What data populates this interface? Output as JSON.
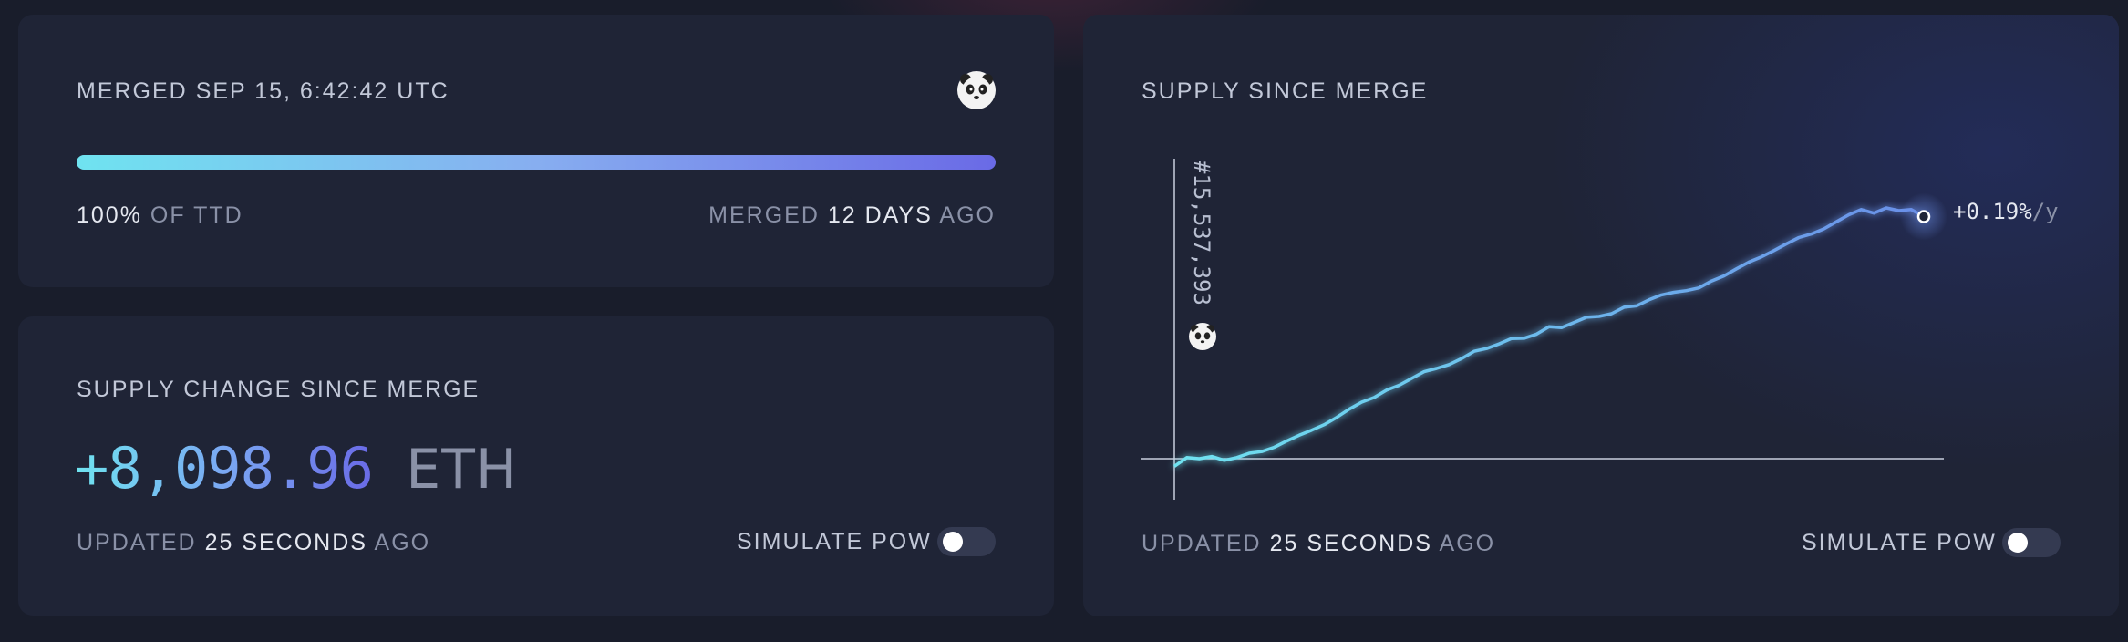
{
  "merge_card": {
    "title_prefix": "MERGED",
    "title_date": "SEP 15, 6:42:42 UTC",
    "progress_value": "100%",
    "progress_label": "OF TTD",
    "progress_fraction": 1.0,
    "merged_prefix": "MERGED",
    "merged_value": "12 DAYS",
    "merged_suffix": "AGO",
    "icon": "panda-icon"
  },
  "supply_card": {
    "title": "SUPPLY CHANGE SINCE MERGE",
    "amount": "+8,098.96",
    "unit": "ETH",
    "updated_prefix": "UPDATED",
    "updated_value": "25 SECONDS",
    "updated_suffix": "AGO",
    "simulate_label": "SIMULATE PoW",
    "simulate_on": false
  },
  "chart_card": {
    "title": "SUPPLY SINCE MERGE",
    "merge_block": "#15,537,393",
    "rate_value": "+0.19%",
    "rate_unit": "/y",
    "updated_prefix": "UPDATED",
    "updated_value": "25 SECONDS",
    "updated_suffix": "AGO",
    "simulate_label": "SIMULATE PoW",
    "simulate_on": false,
    "colors": {
      "line_start": "#6fe3f0",
      "line_end": "#6b8fe8",
      "axis": "#c9cede"
    }
  },
  "chart_data": {
    "type": "line",
    "title": "SUPPLY SINCE MERGE",
    "xlabel": "",
    "ylabel": "",
    "grid": false,
    "x": [
      0,
      1,
      2,
      3,
      4,
      5,
      6,
      7,
      8,
      9,
      10,
      11,
      12,
      13,
      14,
      15,
      16,
      17,
      18,
      19,
      20,
      21,
      22,
      23,
      24,
      25,
      26,
      27,
      28,
      29,
      30,
      31,
      32,
      33,
      34,
      35,
      36,
      37,
      38,
      39,
      40,
      41,
      42,
      43,
      44,
      45,
      46,
      47,
      48,
      49,
      50,
      51,
      52,
      53,
      54,
      55,
      56,
      57,
      58,
      59,
      60
    ],
    "series": [
      {
        "values": [
          -280,
          40,
          0,
          80,
          -60,
          40,
          200,
          260,
          420,
          650,
          860,
          1050,
          1250,
          1520,
          1820,
          2080,
          2250,
          2520,
          2700,
          2950,
          3200,
          3320,
          3460,
          3680,
          3950,
          4050,
          4220,
          4420,
          4430,
          4580,
          4850,
          4820,
          5010,
          5200,
          5230,
          5330,
          5570,
          5620,
          5840,
          6020,
          6120,
          6180,
          6280,
          6530,
          6720,
          6980,
          7230,
          7420,
          7650,
          7900,
          8130,
          8260,
          8450,
          8710,
          8970,
          9160,
          9030,
          9220,
          9120,
          9160,
          8900
        ]
      }
    ]
  }
}
